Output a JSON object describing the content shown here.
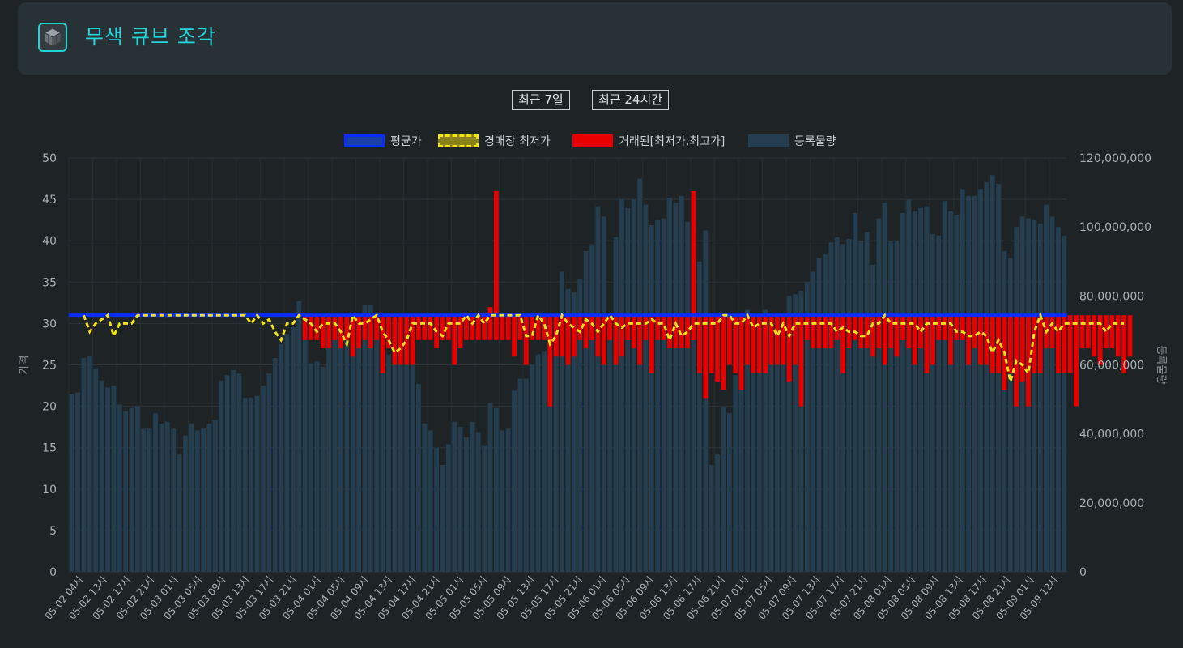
{
  "header": {
    "title": "무색 큐브 조각",
    "icon": "cube-fragment-icon",
    "accent": "#22d8dc"
  },
  "range_buttons": [
    {
      "label": "최근 7일"
    },
    {
      "label": "최근 24시간"
    }
  ],
  "legend": [
    {
      "label": "평균가",
      "color": "#1236e0"
    },
    {
      "label": "경매장 최저가",
      "color": "#f4e21a"
    },
    {
      "label": "거래된[최저가,최고가]",
      "color": "#e60000"
    },
    {
      "label": "등록물량",
      "color": "#243e4f"
    }
  ],
  "chart_data": {
    "type": "bar",
    "y_left": {
      "label": "가격",
      "range": [
        0,
        50
      ],
      "ticks": [
        "0",
        "5",
        "10",
        "15",
        "20",
        "25",
        "30",
        "35",
        "40",
        "45",
        "50"
      ]
    },
    "y_right": {
      "label": "등록물량",
      "range": [
        0,
        120000000
      ],
      "ticks": [
        "0",
        "20,000,000",
        "40,000,000",
        "60,000,000",
        "80,000,000",
        "100,000,000",
        "120,000,000"
      ]
    },
    "x_labels": [
      "05-02 04시",
      "05-02 13시",
      "05-02 17시",
      "05-02 21시",
      "05-03 01시",
      "05-03 05시",
      "05-03 09시",
      "05-03 13시",
      "05-03 17시",
      "05-03 21시",
      "05-04 01시",
      "05-04 05시",
      "05-04 09시",
      "05-04 13시",
      "05-04 17시",
      "05-04 21시",
      "05-05 01시",
      "05-05 05시",
      "05-05 09시",
      "05-05 13시",
      "05-05 17시",
      "05-05 21시",
      "05-06 01시",
      "05-06 05시",
      "05-06 09시",
      "05-06 13시",
      "05-06 17시",
      "05-06 21시",
      "05-07 01시",
      "05-07 05시",
      "05-07 09시",
      "05-07 13시",
      "05-07 17시",
      "05-07 21시",
      "05-08 01시",
      "05-08 05시",
      "05-08 09시",
      "05-08 13시",
      "05-08 17시",
      "05-08 21시",
      "05-09 01시",
      "05-09 12시"
    ],
    "avg_price": 31,
    "volume": [
      51.5,
      52,
      62,
      62.5,
      59,
      55.5,
      53.5,
      54,
      48.5,
      46.5,
      47.5,
      48,
      41.5,
      41.5,
      46,
      43,
      43.5,
      41.5,
      34,
      39.5,
      43,
      41,
      41.5,
      43,
      44,
      55.5,
      57,
      58.5,
      57.5,
      50.5,
      50.5,
      51,
      54,
      57.5,
      62,
      66,
      69,
      71,
      78.5,
      72,
      60.5,
      61,
      59.5,
      67,
      70,
      69.5,
      68,
      69,
      70,
      77.5,
      77.5,
      75,
      66,
      63,
      64,
      63,
      63,
      63,
      54.5,
      43,
      41,
      36,
      31,
      37,
      43.5,
      42,
      39,
      43.5,
      40.5,
      36.5,
      49,
      47.5,
      41,
      41.5,
      52.5,
      56,
      56,
      60,
      63,
      64,
      70,
      73.5,
      87,
      82,
      81,
      85,
      93,
      95,
      106,
      103,
      74,
      97,
      108,
      105.5,
      108,
      114,
      106.5,
      100.5,
      102,
      102.5,
      108.5,
      107,
      109,
      101.5,
      97.5,
      90,
      99,
      31,
      34,
      48,
      46,
      57,
      63,
      76,
      71,
      72,
      76,
      66,
      63,
      67,
      80,
      80.5,
      81.5,
      84,
      87,
      91,
      92,
      95.5,
      97,
      95,
      96.5,
      104,
      96,
      98.5,
      89,
      102.5,
      107,
      96,
      96,
      104,
      108,
      104.5,
      105.5,
      106,
      98,
      97.5,
      107.5,
      104.5,
      103.5,
      111,
      109,
      109,
      111,
      113,
      115,
      112.5,
      93,
      91,
      100,
      103,
      102.5,
      102,
      101,
      106.5,
      103,
      100,
      97.5
    ],
    "lowest_price": [
      null,
      null,
      31,
      29,
      30,
      30.5,
      31,
      28.5,
      30,
      30,
      30,
      31,
      null,
      null,
      null,
      null,
      null,
      null,
      null,
      null,
      null,
      null,
      null,
      null,
      null,
      null,
      null,
      null,
      null,
      31,
      30,
      31,
      30,
      30.5,
      29,
      28,
      30,
      30,
      31,
      null,
      30,
      29,
      30,
      30,
      30,
      29,
      27.5,
      31,
      30,
      30,
      30.5,
      31,
      29,
      28,
      26.5,
      27,
      28,
      30,
      30,
      30,
      30,
      29,
      28.5,
      30,
      30,
      30,
      31,
      30,
      31,
      30,
      31,
      31,
      null,
      null,
      null,
      31,
      28.5,
      28.5,
      31,
      30,
      27.5,
      28.5,
      31,
      30,
      29.5,
      29,
      30.5,
      30,
      29,
      30,
      31,
      30,
      29.5,
      30,
      30,
      30,
      30,
      30.5,
      30,
      30,
      28,
      30,
      28.5,
      29,
      30,
      30,
      30,
      30,
      30,
      31,
      31,
      30,
      30,
      31,
      29.5,
      30,
      30,
      30,
      28.5,
      30,
      28.5,
      30,
      30,
      30,
      30,
      30,
      30,
      30,
      29,
      29.5,
      29,
      29,
      28.5,
      28.5,
      30,
      30,
      31,
      30,
      30,
      30,
      30,
      30,
      29,
      30,
      30,
      30,
      30,
      30,
      29,
      29,
      28.5,
      28.5,
      29,
      28.5,
      26.5,
      28,
      26.5,
      23,
      25.5,
      25,
      24,
      29,
      31,
      29,
      30,
      29,
      30,
      30,
      30,
      30,
      30,
      30,
      30,
      29,
      30,
      30,
      30
    ],
    "traded_range": [
      [
        0,
        0
      ],
      [
        0,
        0
      ],
      [
        0,
        0
      ],
      [
        0,
        0
      ],
      [
        0,
        0
      ],
      [
        0,
        0
      ],
      [
        0,
        0
      ],
      [
        0,
        0
      ],
      [
        0,
        0
      ],
      [
        0,
        0
      ],
      [
        0,
        0
      ],
      [
        0,
        0
      ],
      [
        0,
        0
      ],
      [
        0,
        0
      ],
      [
        0,
        0
      ],
      [
        0,
        0
      ],
      [
        0,
        0
      ],
      [
        0,
        0
      ],
      [
        0,
        0
      ],
      [
        0,
        0
      ],
      [
        0,
        0
      ],
      [
        0,
        0
      ],
      [
        0,
        0
      ],
      [
        0,
        0
      ],
      [
        0,
        0
      ],
      [
        0,
        0
      ],
      [
        0,
        0
      ],
      [
        0,
        0
      ],
      [
        0,
        0
      ],
      [
        0,
        0
      ],
      [
        0,
        0
      ],
      [
        0,
        0
      ],
      [
        0,
        0
      ],
      [
        0,
        0
      ],
      [
        0,
        0
      ],
      [
        0,
        0
      ],
      [
        0,
        0
      ],
      [
        0,
        0
      ],
      [
        0,
        0
      ],
      [
        28,
        31
      ],
      [
        28,
        31
      ],
      [
        28,
        31
      ],
      [
        27,
        31
      ],
      [
        27,
        31
      ],
      [
        28,
        31
      ],
      [
        27,
        31
      ],
      [
        28,
        31
      ],
      [
        26,
        31
      ],
      [
        27,
        31
      ],
      [
        28,
        31
      ],
      [
        27,
        31
      ],
      [
        28,
        31
      ],
      [
        24,
        31
      ],
      [
        27,
        31
      ],
      [
        25,
        31
      ],
      [
        25,
        31
      ],
      [
        25,
        31
      ],
      [
        25,
        31
      ],
      [
        28,
        31
      ],
      [
        28,
        31
      ],
      [
        28,
        31
      ],
      [
        27,
        31
      ],
      [
        28,
        31
      ],
      [
        28,
        31
      ],
      [
        25,
        31
      ],
      [
        27,
        31
      ],
      [
        28,
        31
      ],
      [
        28,
        31
      ],
      [
        28,
        31
      ],
      [
        28,
        31
      ],
      [
        28,
        32
      ],
      [
        28,
        46
      ],
      [
        28,
        31
      ],
      [
        28,
        31
      ],
      [
        26,
        31
      ],
      [
        28,
        31
      ],
      [
        25,
        31
      ],
      [
        28,
        31
      ],
      [
        28,
        31
      ],
      [
        28,
        31
      ],
      [
        20,
        31
      ],
      [
        26,
        31
      ],
      [
        26,
        31
      ],
      [
        25,
        31
      ],
      [
        26,
        31
      ],
      [
        28,
        31
      ],
      [
        27,
        31
      ],
      [
        28,
        31
      ],
      [
        26,
        31
      ],
      [
        25,
        31
      ],
      [
        28,
        31
      ],
      [
        25,
        31
      ],
      [
        26,
        31
      ],
      [
        28,
        31
      ],
      [
        27,
        31
      ],
      [
        25,
        31
      ],
      [
        28,
        31
      ],
      [
        24,
        31
      ],
      [
        28,
        31
      ],
      [
        28,
        31
      ],
      [
        27,
        31
      ],
      [
        27,
        31
      ],
      [
        27,
        31
      ],
      [
        27,
        31
      ],
      [
        28,
        46
      ],
      [
        24,
        31
      ],
      [
        21,
        31
      ],
      [
        24,
        31
      ],
      [
        23,
        31
      ],
      [
        22,
        31
      ],
      [
        25,
        31
      ],
      [
        24,
        31
      ],
      [
        22,
        31
      ],
      [
        25,
        31
      ],
      [
        24,
        31
      ],
      [
        24,
        31
      ],
      [
        24,
        31
      ],
      [
        25,
        31
      ],
      [
        25,
        31
      ],
      [
        25,
        31
      ],
      [
        23,
        31
      ],
      [
        25,
        31
      ],
      [
        20,
        31
      ],
      [
        28,
        31
      ],
      [
        27,
        31
      ],
      [
        27,
        31
      ],
      [
        27,
        31
      ],
      [
        27,
        31
      ],
      [
        28,
        31
      ],
      [
        24,
        31
      ],
      [
        27,
        31
      ],
      [
        28,
        31
      ],
      [
        27,
        31
      ],
      [
        27,
        31
      ],
      [
        26,
        31
      ],
      [
        27,
        31
      ],
      [
        25,
        31
      ],
      [
        27,
        31
      ],
      [
        26,
        31
      ],
      [
        28,
        31
      ],
      [
        27,
        31
      ],
      [
        25,
        31
      ],
      [
        27,
        31
      ],
      [
        24,
        31
      ],
      [
        25,
        31
      ],
      [
        28,
        31
      ],
      [
        28,
        31
      ],
      [
        25,
        31
      ],
      [
        28,
        31
      ],
      [
        28,
        31
      ],
      [
        25,
        31
      ],
      [
        27,
        31
      ],
      [
        25,
        31
      ],
      [
        25,
        31
      ],
      [
        24,
        31
      ],
      [
        24,
        31
      ],
      [
        22,
        31
      ],
      [
        24,
        31
      ],
      [
        20,
        31
      ],
      [
        23,
        31
      ],
      [
        20,
        31
      ],
      [
        24,
        31
      ],
      [
        24,
        31
      ],
      [
        27,
        31
      ],
      [
        27,
        31
      ],
      [
        24,
        31
      ],
      [
        24,
        31
      ],
      [
        24,
        31
      ],
      [
        20,
        31
      ],
      [
        27,
        31
      ],
      [
        27,
        31
      ],
      [
        26,
        31
      ],
      [
        25,
        31
      ],
      [
        27,
        31
      ],
      [
        27,
        31
      ],
      [
        26,
        31
      ],
      [
        24,
        31
      ],
      [
        26,
        31
      ]
    ],
    "grid": true,
    "legend_position": "top"
  }
}
